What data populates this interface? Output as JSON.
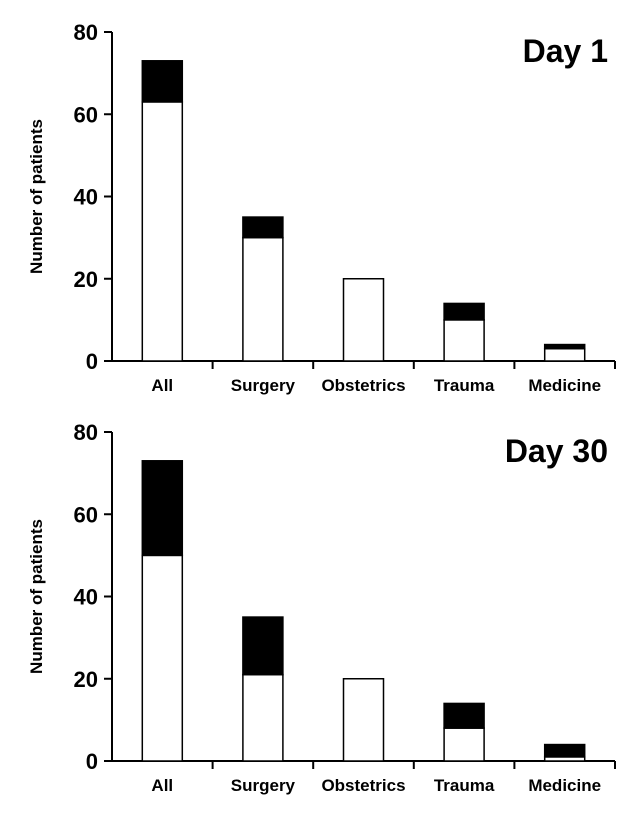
{
  "chart_data": [
    {
      "type": "bar",
      "stacked": true,
      "title": "Day 1",
      "xlabel": "",
      "ylabel": "Number of patients",
      "ylim": [
        0,
        80
      ],
      "yticks": [
        0,
        20,
        40,
        60,
        80
      ],
      "categories": [
        "All",
        "Surgery",
        "Obstetrics",
        "Trauma",
        "Medicine"
      ],
      "series": [
        {
          "name": "lower (white)",
          "color": "#ffffff",
          "values": [
            63,
            30,
            20,
            10,
            3
          ]
        },
        {
          "name": "upper (black)",
          "color": "#000000",
          "values": [
            10,
            5,
            0,
            4,
            1
          ]
        }
      ]
    },
    {
      "type": "bar",
      "stacked": true,
      "title": "Day 30",
      "xlabel": "",
      "ylabel": "Number of patients",
      "ylim": [
        0,
        80
      ],
      "yticks": [
        0,
        20,
        40,
        60,
        80
      ],
      "categories": [
        "All",
        "Surgery",
        "Obstetrics",
        "Trauma",
        "Medicine"
      ],
      "series": [
        {
          "name": "lower (white)",
          "color": "#ffffff",
          "values": [
            50,
            21,
            20,
            8,
            1
          ]
        },
        {
          "name": "upper (black)",
          "color": "#000000",
          "values": [
            23,
            14,
            0,
            6,
            3
          ]
        }
      ]
    }
  ]
}
